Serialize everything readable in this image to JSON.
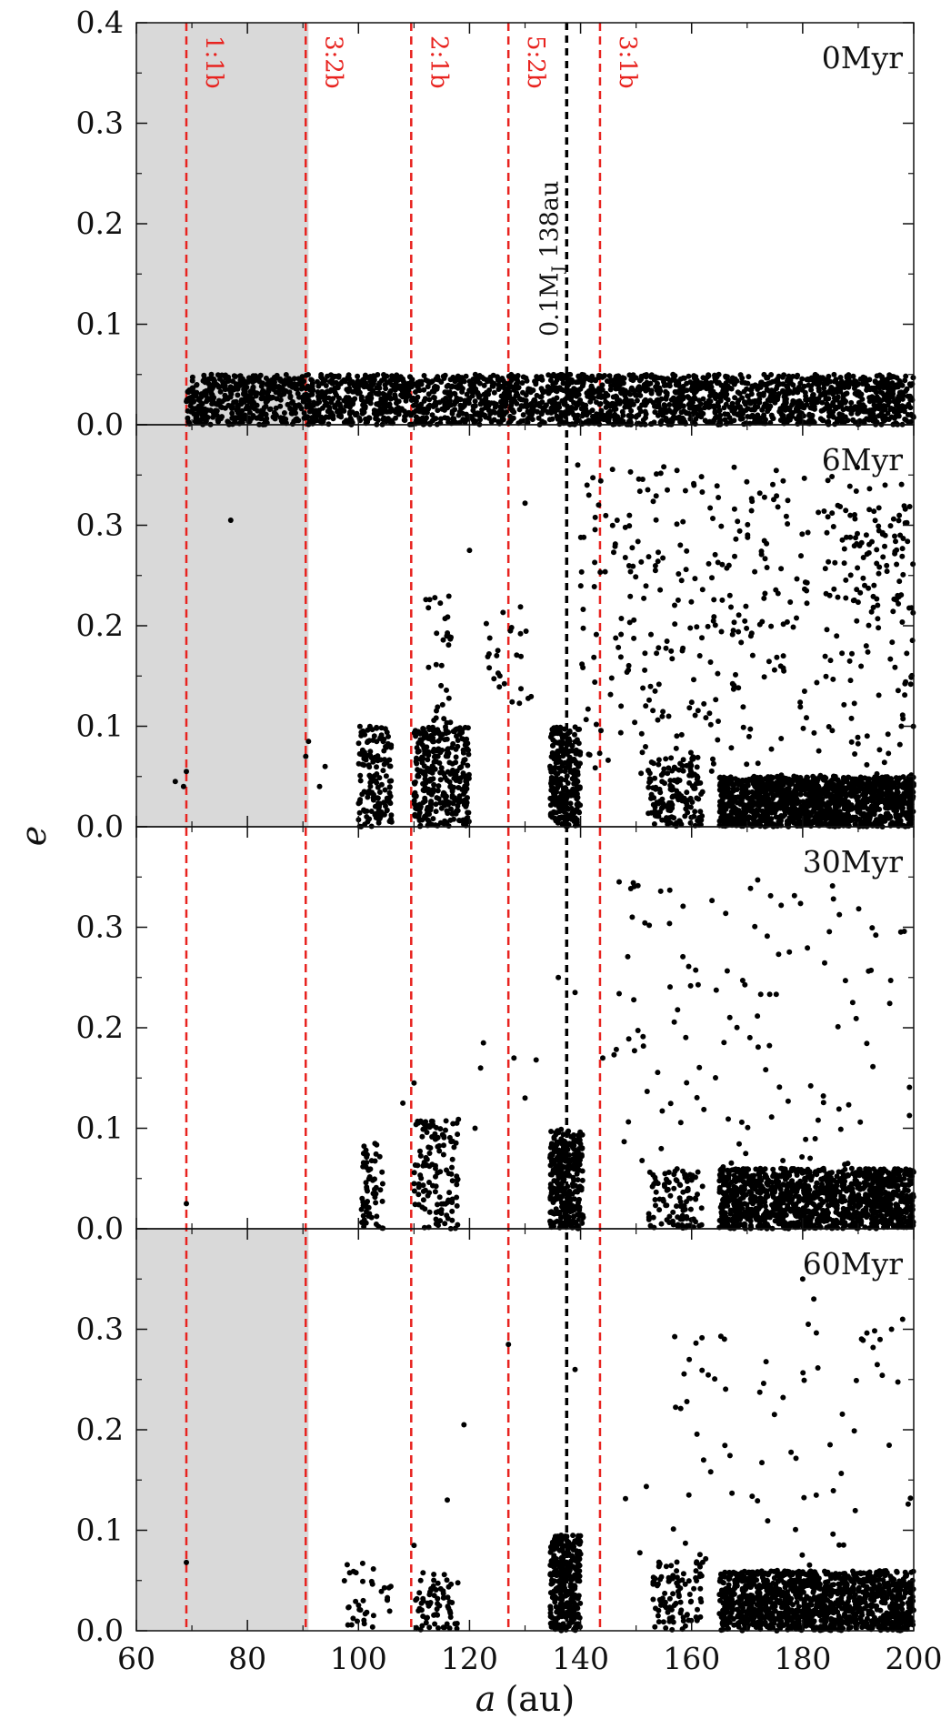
{
  "chart_data": {
    "type": "scatter",
    "xlabel_var": "a",
    "xlabel_unit": "(au)",
    "ylabel": "e",
    "xlim": [
      60,
      200
    ],
    "ylim": [
      0,
      0.4
    ],
    "xticks": [
      "60",
      "80",
      "100",
      "120",
      "140",
      "160",
      "180",
      "200"
    ],
    "yticks": [
      "0.0",
      "0.1",
      "0.2",
      "0.3",
      "0.4"
    ],
    "shaded_region": {
      "x": [
        60,
        91
      ],
      "color": "#d9d9d9"
    },
    "resonances": [
      {
        "label": "1:1b",
        "x": 69
      },
      {
        "label": "3:2b",
        "x": 90.5
      },
      {
        "label": "2:1b",
        "x": 109.5
      },
      {
        "label": "5:2b",
        "x": 127
      },
      {
        "label": "3:1b",
        "x": 143.5
      }
    ],
    "resonance_color": "#e8231f",
    "planet": {
      "label_main": "0.1M",
      "label_sub": "J",
      "label_tail": " 138au",
      "x": 137.5,
      "color": "#000000"
    },
    "panels": [
      {
        "label": "0Myr",
        "shaded": true,
        "clusters": [
          {
            "a": [
              69,
              200
            ],
            "e": [
              0,
              0.05
            ],
            "n": 2600
          }
        ],
        "points": []
      },
      {
        "label": "6Myr",
        "shaded": true,
        "clusters": [
          {
            "a": [
              100,
              106
            ],
            "e": [
              0,
              0.1
            ],
            "n": 150
          },
          {
            "a": [
              110,
              120
            ],
            "e": [
              0,
              0.1
            ],
            "n": 320
          },
          {
            "a": [
              112,
              117
            ],
            "e": [
              0.1,
              0.23
            ],
            "n": 30
          },
          {
            "a": [
              134.5,
              140
            ],
            "e": [
              0,
              0.1
            ],
            "n": 260
          },
          {
            "a": [
              123,
              132
            ],
            "e": [
              0.12,
              0.22
            ],
            "n": 25
          },
          {
            "a": [
              152,
              162
            ],
            "e": [
              0,
              0.07
            ],
            "n": 150
          },
          {
            "a": [
              165,
              200
            ],
            "e": [
              0,
              0.05
            ],
            "n": 1300
          },
          {
            "a": [
              140,
              200
            ],
            "e": [
              0.05,
              0.36
            ],
            "n": 380
          },
          {
            "a": [
              185,
              200
            ],
            "e": [
              0.2,
              0.32
            ],
            "n": 70
          }
        ],
        "points": [
          [
            67,
            0.045
          ],
          [
            69,
            0.055
          ],
          [
            68.5,
            0.04
          ],
          [
            77,
            0.305
          ],
          [
            91,
            0.085
          ],
          [
            90.5,
            0.07
          ],
          [
            94,
            0.06
          ],
          [
            93,
            0.04
          ],
          [
            120,
            0.275
          ],
          [
            130,
            0.322
          ],
          [
            139.5,
            0.36
          ],
          [
            141.5,
            0.33
          ]
        ]
      },
      {
        "label": "30Myr",
        "shaded": false,
        "clusters": [
          {
            "a": [
              100.5,
              104.5
            ],
            "e": [
              0,
              0.09
            ],
            "n": 60
          },
          {
            "a": [
              110,
              118
            ],
            "e": [
              0,
              0.11
            ],
            "n": 130
          },
          {
            "a": [
              134.5,
              140.5
            ],
            "e": [
              0,
              0.1
            ],
            "n": 300
          },
          {
            "a": [
              152,
              162
            ],
            "e": [
              0,
              0.06
            ],
            "n": 100
          },
          {
            "a": [
              165,
              200
            ],
            "e": [
              0,
              0.06
            ],
            "n": 1250
          },
          {
            "a": [
              145,
              200
            ],
            "e": [
              0.06,
              0.35
            ],
            "n": 120
          }
        ],
        "points": [
          [
            69,
            0.025
          ],
          [
            108,
            0.125
          ],
          [
            110,
            0.145
          ],
          [
            121,
            0.1
          ],
          [
            122,
            0.16
          ],
          [
            122.5,
            0.185
          ],
          [
            128,
            0.17
          ],
          [
            130,
            0.13
          ],
          [
            132,
            0.168
          ],
          [
            136,
            0.25
          ],
          [
            139,
            0.235
          ],
          [
            144,
            0.17
          ]
        ]
      },
      {
        "label": "60Myr",
        "shaded": true,
        "clusters": [
          {
            "a": [
              97,
              106
            ],
            "e": [
              0,
              0.07
            ],
            "n": 35
          },
          {
            "a": [
              110,
              118
            ],
            "e": [
              0,
              0.06
            ],
            "n": 70
          },
          {
            "a": [
              134.5,
              140
            ],
            "e": [
              0,
              0.095
            ],
            "n": 320
          },
          {
            "a": [
              153,
              162
            ],
            "e": [
              0,
              0.07
            ],
            "n": 100
          },
          {
            "a": [
              165,
              200
            ],
            "e": [
              0,
              0.06
            ],
            "n": 1250
          },
          {
            "a": [
              148,
              200
            ],
            "e": [
              0.06,
              0.3
            ],
            "n": 70
          }
        ],
        "points": [
          [
            69,
            0.068
          ],
          [
            110,
            0.085
          ],
          [
            116,
            0.13
          ],
          [
            119,
            0.205
          ],
          [
            127,
            0.285
          ],
          [
            139,
            0.26
          ],
          [
            180,
            0.35
          ],
          [
            182,
            0.33
          ],
          [
            181,
            0.305
          ],
          [
            196,
            0.3
          ],
          [
            198,
            0.31
          ]
        ]
      }
    ]
  }
}
